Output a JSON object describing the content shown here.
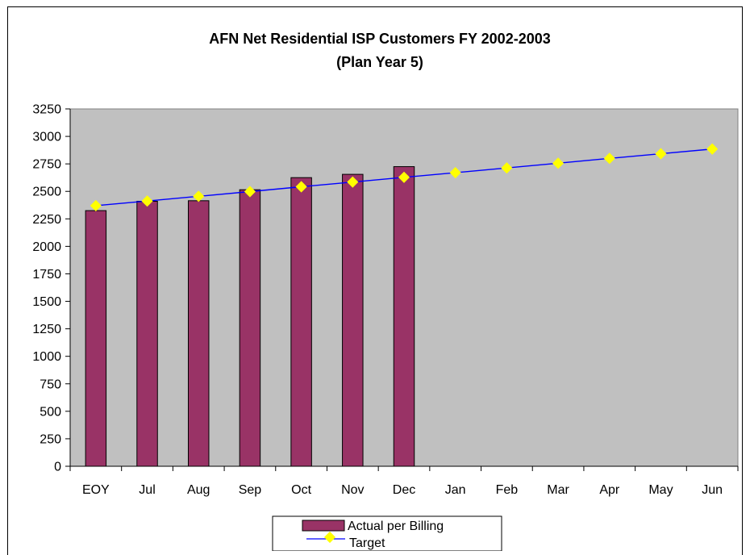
{
  "chart_data": {
    "type": "bar",
    "title": "AFN Net Residential ISP Customers FY 2002-2003",
    "subtitle": "(Plan Year 5)",
    "categories": [
      "EOY",
      "Jul",
      "Aug",
      "Sep",
      "Oct",
      "Nov",
      "Dec",
      "Jan",
      "Feb",
      "Mar",
      "Apr",
      "May",
      "Jun"
    ],
    "ylim": [
      0,
      3250
    ],
    "yticks": [
      0,
      250,
      500,
      750,
      1000,
      1250,
      1500,
      1750,
      2000,
      2250,
      2500,
      2750,
      3000,
      3250
    ],
    "grid": false,
    "legend": "bottom-center",
    "series": [
      {
        "name": "Actual per Billing",
        "kind": "bar",
        "color": "#993366",
        "values": [
          2325,
          2410,
          2415,
          2515,
          2625,
          2655,
          2725,
          null,
          null,
          null,
          null,
          null,
          null
        ]
      },
      {
        "name": "Target",
        "kind": "line",
        "color": "#0000ff",
        "marker_color": "#ffff00",
        "values": [
          2370,
          2412,
          2455,
          2498,
          2542,
          2585,
          2628,
          2670,
          2713,
          2756,
          2800,
          2842,
          2885
        ]
      }
    ],
    "plot_background": "#c0c0c0"
  }
}
